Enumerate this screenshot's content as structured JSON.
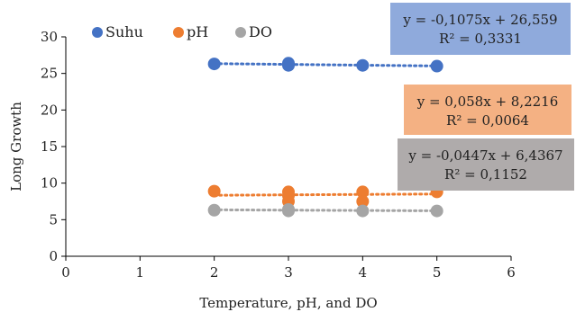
{
  "chart_data": {
    "type": "scatter",
    "xlabel": "Temperature, pH, and DO",
    "ylabel": "Long Growth",
    "xlim": [
      0,
      6
    ],
    "ylim": [
      0,
      30
    ],
    "xticks": [
      "0",
      "1",
      "2",
      "3",
      "4",
      "5",
      "6"
    ],
    "yticks": [
      "0",
      "5",
      "10",
      "15",
      "20",
      "25",
      "30"
    ],
    "grid": false,
    "legend_position": "top-left",
    "series": [
      {
        "name": "Suhu",
        "color": "#4472C4",
        "x": [
          2,
          3,
          3,
          4,
          5
        ],
        "y": [
          26.3,
          26.4,
          26.1,
          26.1,
          26.0
        ],
        "trendline": {
          "slope": -0.1075,
          "intercept": 26.559
        },
        "equation": "y = -0,1075x + 26,559",
        "r2": "R² = 0,3331",
        "label_bg": "#8FAADC"
      },
      {
        "name": "pH",
        "color": "#ED7D31",
        "x": [
          2,
          3,
          3,
          3,
          4,
          4,
          5
        ],
        "y": [
          8.9,
          8.8,
          8.3,
          7.5,
          8.8,
          7.5,
          8.8
        ],
        "trendline": {
          "slope": 0.058,
          "intercept": 8.2216
        },
        "equation": "y = 0,058x + 8,2216",
        "r2": "R² = 0,0064",
        "label_bg": "#F4B183"
      },
      {
        "name": "DO",
        "color": "#A5A5A5",
        "x": [
          2,
          3,
          3,
          4,
          5
        ],
        "y": [
          6.3,
          6.4,
          6.2,
          6.2,
          6.2
        ],
        "trendline": {
          "slope": -0.0447,
          "intercept": 6.4367
        },
        "equation": "y = -0,0447x + 6,4367",
        "r2": "R² = 0,1152",
        "label_bg": "#AFABAB"
      }
    ]
  }
}
